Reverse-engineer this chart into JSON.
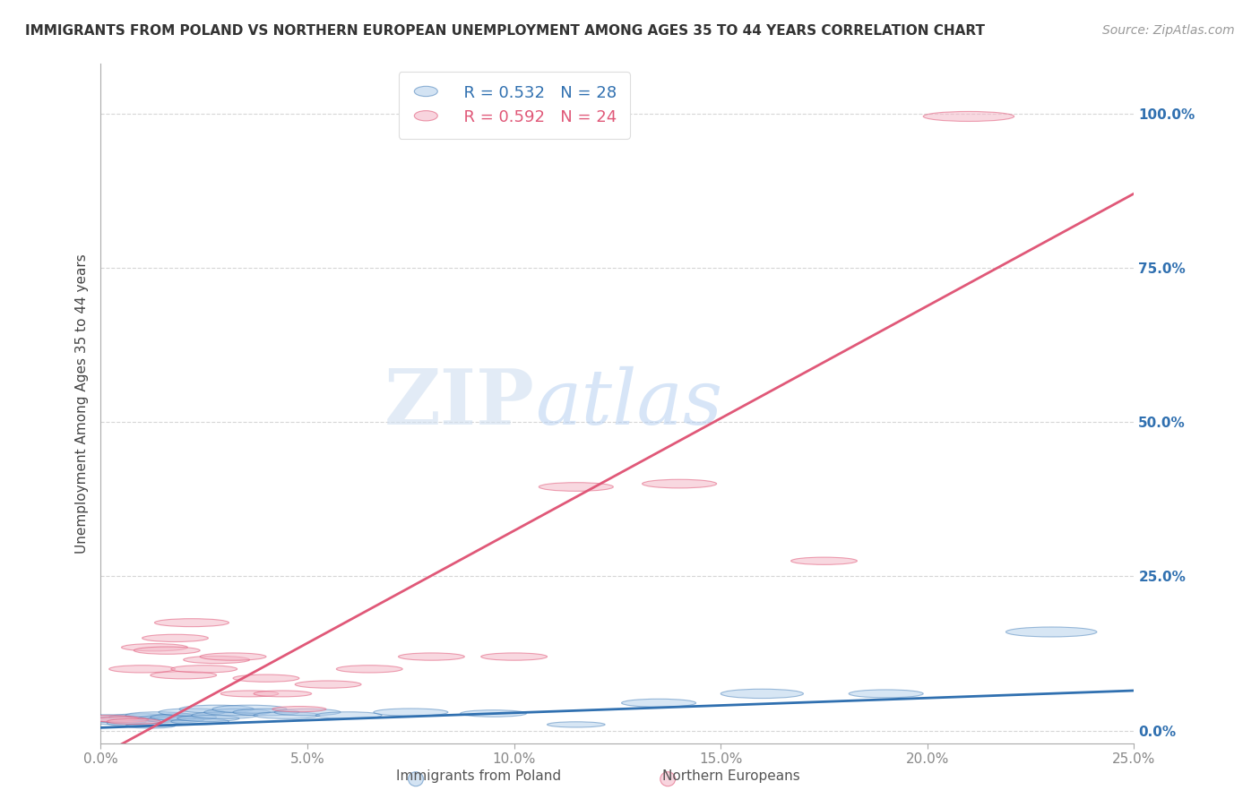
{
  "title": "IMMIGRANTS FROM POLAND VS NORTHERN EUROPEAN UNEMPLOYMENT AMONG AGES 35 TO 44 YEARS CORRELATION CHART",
  "source": "Source: ZipAtlas.com",
  "ylabel": "Unemployment Among Ages 35 to 44 years",
  "xlim": [
    0.0,
    0.25
  ],
  "ylim": [
    -0.02,
    1.08
  ],
  "xticks": [
    0.0,
    0.05,
    0.1,
    0.15,
    0.2,
    0.25
  ],
  "yticks": [
    0.0,
    0.25,
    0.5,
    0.75,
    1.0
  ],
  "blue_R": 0.532,
  "blue_N": 28,
  "pink_R": 0.592,
  "pink_N": 24,
  "blue_label": "Immigrants from Poland",
  "pink_label": "Northern Europeans",
  "blue_color": "#a8c8e8",
  "pink_color": "#f4b8c8",
  "blue_line_color": "#3070b0",
  "pink_line_color": "#e05878",
  "blue_scatter_x": [
    0.002,
    0.004,
    0.006,
    0.008,
    0.01,
    0.012,
    0.014,
    0.016,
    0.018,
    0.02,
    0.022,
    0.024,
    0.026,
    0.028,
    0.03,
    0.033,
    0.036,
    0.04,
    0.045,
    0.05,
    0.06,
    0.075,
    0.095,
    0.115,
    0.135,
    0.16,
    0.19,
    0.23
  ],
  "blue_scatter_y": [
    0.02,
    0.015,
    0.018,
    0.012,
    0.022,
    0.008,
    0.025,
    0.02,
    0.018,
    0.022,
    0.03,
    0.015,
    0.02,
    0.035,
    0.025,
    0.03,
    0.035,
    0.03,
    0.025,
    0.03,
    0.025,
    0.03,
    0.028,
    0.01,
    0.045,
    0.06,
    0.06,
    0.16
  ],
  "blue_scatter_w": [
    0.018,
    0.014,
    0.016,
    0.013,
    0.016,
    0.012,
    0.016,
    0.014,
    0.014,
    0.016,
    0.016,
    0.014,
    0.015,
    0.018,
    0.016,
    0.016,
    0.018,
    0.016,
    0.016,
    0.016,
    0.016,
    0.018,
    0.016,
    0.014,
    0.018,
    0.02,
    0.018,
    0.022
  ],
  "blue_scatter_h": [
    0.012,
    0.01,
    0.011,
    0.009,
    0.011,
    0.008,
    0.011,
    0.01,
    0.01,
    0.011,
    0.012,
    0.01,
    0.01,
    0.013,
    0.011,
    0.011,
    0.013,
    0.011,
    0.011,
    0.011,
    0.011,
    0.012,
    0.011,
    0.009,
    0.013,
    0.015,
    0.013,
    0.016
  ],
  "pink_scatter_x": [
    0.002,
    0.005,
    0.008,
    0.01,
    0.013,
    0.016,
    0.018,
    0.02,
    0.022,
    0.025,
    0.028,
    0.032,
    0.036,
    0.04,
    0.044,
    0.048,
    0.055,
    0.065,
    0.08,
    0.1,
    0.115,
    0.14,
    0.175,
    0.21
  ],
  "pink_scatter_y": [
    0.02,
    0.018,
    0.015,
    0.1,
    0.135,
    0.13,
    0.15,
    0.09,
    0.175,
    0.1,
    0.115,
    0.12,
    0.06,
    0.085,
    0.06,
    0.035,
    0.075,
    0.1,
    0.12,
    0.12,
    0.395,
    0.4,
    0.275,
    0.995
  ],
  "pink_scatter_w": [
    0.014,
    0.013,
    0.013,
    0.016,
    0.016,
    0.016,
    0.016,
    0.016,
    0.018,
    0.016,
    0.016,
    0.016,
    0.014,
    0.016,
    0.014,
    0.013,
    0.016,
    0.016,
    0.016,
    0.016,
    0.018,
    0.018,
    0.016,
    0.022
  ],
  "pink_scatter_h": [
    0.01,
    0.009,
    0.009,
    0.012,
    0.012,
    0.012,
    0.012,
    0.012,
    0.013,
    0.012,
    0.012,
    0.012,
    0.01,
    0.012,
    0.01,
    0.009,
    0.012,
    0.012,
    0.012,
    0.012,
    0.014,
    0.014,
    0.012,
    0.016
  ],
  "blue_line_x": [
    0.0,
    0.25
  ],
  "blue_line_y": [
    0.005,
    0.065
  ],
  "pink_line_x": [
    0.0,
    0.25
  ],
  "pink_line_y": [
    -0.04,
    0.87
  ],
  "watermark_zip": "ZIP",
  "watermark_atlas": "atlas",
  "background_color": "#ffffff",
  "grid_color": "#cccccc"
}
